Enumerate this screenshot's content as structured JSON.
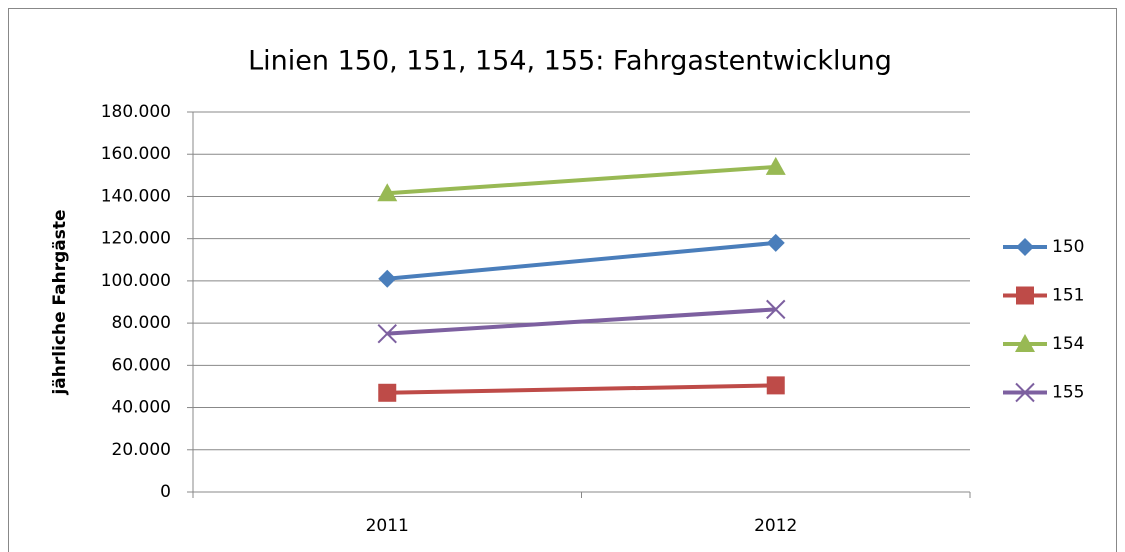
{
  "chart_data": {
    "type": "line",
    "title": "Linien 150, 151, 154, 155: Fahrgastentwicklung",
    "ylabel": "jährliche Fahrgäste",
    "categories": [
      "2011",
      "2012"
    ],
    "series": [
      {
        "name": "150",
        "color": "#4a7ebb",
        "marker": "diamond",
        "values": [
          101000,
          118000
        ]
      },
      {
        "name": "151",
        "color": "#be4b48",
        "marker": "square",
        "values": [
          47000,
          50500
        ]
      },
      {
        "name": "154",
        "color": "#98b954",
        "marker": "triangle",
        "values": [
          141500,
          154000
        ]
      },
      {
        "name": "155",
        "color": "#7d60a0",
        "marker": "x",
        "values": [
          75000,
          86500
        ]
      }
    ],
    "ylim": [
      0,
      180000
    ],
    "yticks": [
      0,
      {
        "value": 20000,
        "label": "20.000"
      },
      {
        "value": 40000,
        "label": "40.000"
      },
      {
        "value": 60000,
        "label": "60.000"
      },
      {
        "value": 80000,
        "label": "80.000"
      },
      {
        "value": 100000,
        "label": "100.000"
      },
      {
        "value": 120000,
        "label": "120.000"
      },
      {
        "value": 140000,
        "label": "140.000"
      },
      {
        "value": 160000,
        "label": "160.000"
      },
      {
        "value": 180000,
        "label": "180.000"
      }
    ],
    "grid": true,
    "legend": "right"
  }
}
